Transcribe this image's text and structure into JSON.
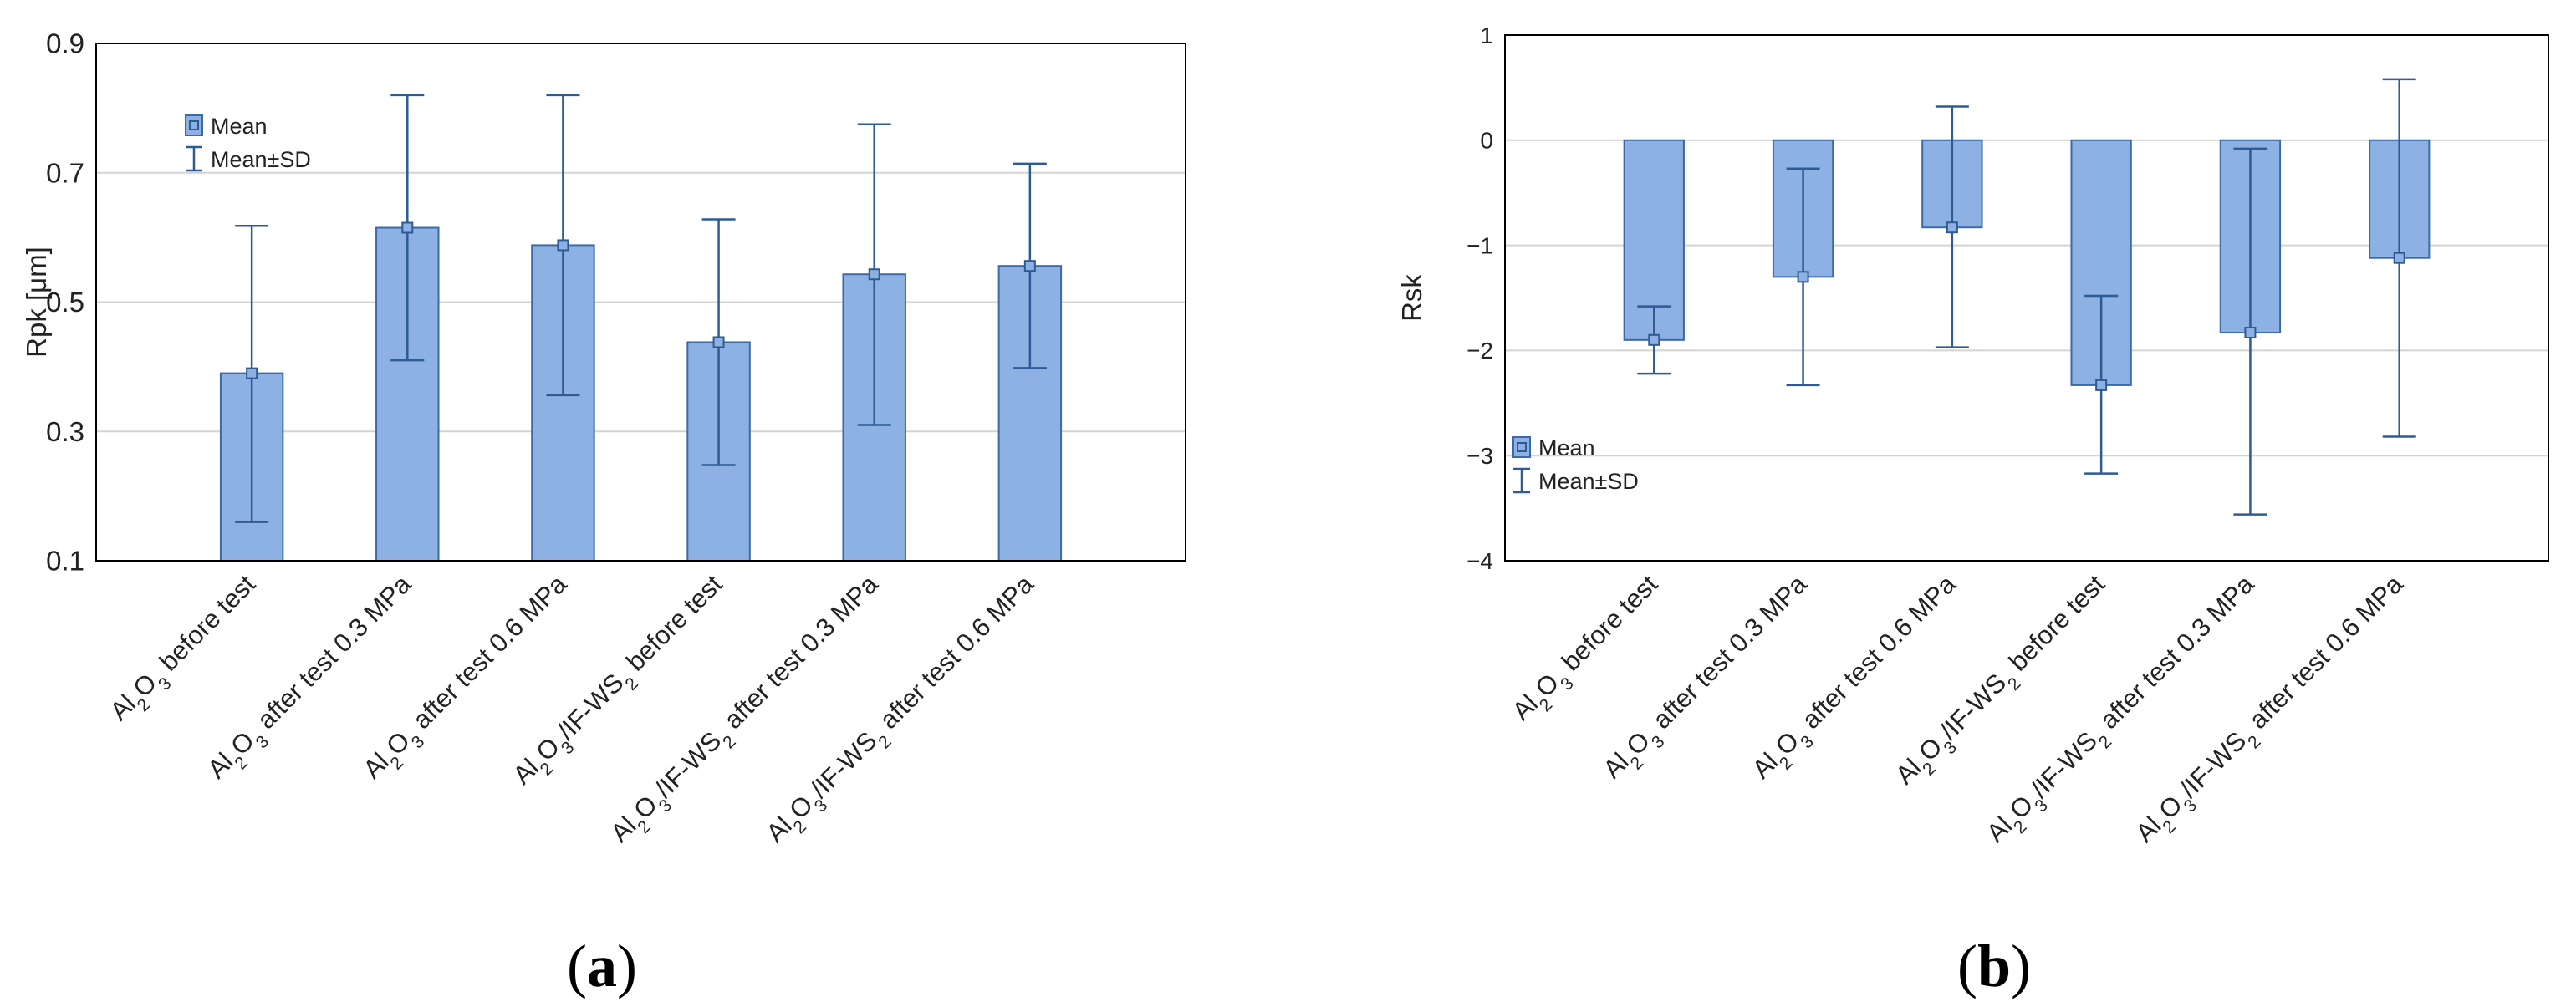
{
  "chart_data": [
    {
      "panel": "(a)",
      "type": "bar",
      "ylabel": "Rpk [μm]",
      "xlabel": "",
      "ylim": [
        0.1,
        0.9
      ],
      "yticks": [
        0.1,
        0.3,
        0.5,
        0.7,
        0.9
      ],
      "ytick_labels": [
        "0.1",
        "0.3",
        "0.5",
        "0.7",
        "0.9"
      ],
      "grid": true,
      "legend_position": "top-left",
      "legend": [
        "Mean",
        "Mean±SD"
      ],
      "categories": [
        [
          {
            "t": "Al"
          },
          {
            "t": "2",
            "sub": true
          },
          {
            "t": "O"
          },
          {
            "t": "3",
            "sub": true
          },
          {
            "t": " before test"
          }
        ],
        [
          {
            "t": "Al"
          },
          {
            "t": "2",
            "sub": true
          },
          {
            "t": "O"
          },
          {
            "t": "3",
            "sub": true
          },
          {
            "t": " after test 0.3 MPa"
          }
        ],
        [
          {
            "t": "Al"
          },
          {
            "t": "2",
            "sub": true
          },
          {
            "t": "O"
          },
          {
            "t": "3",
            "sub": true
          },
          {
            "t": " after test 0.6 MPa"
          }
        ],
        [
          {
            "t": "Al"
          },
          {
            "t": "2",
            "sub": true
          },
          {
            "t": "O"
          },
          {
            "t": "3",
            "sub": true
          },
          {
            "t": "/IF-WS"
          },
          {
            "t": "2",
            "sub": true
          },
          {
            "t": " before test"
          }
        ],
        [
          {
            "t": "Al"
          },
          {
            "t": "2",
            "sub": true
          },
          {
            "t": "O"
          },
          {
            "t": "3",
            "sub": true
          },
          {
            "t": "/IF-WS"
          },
          {
            "t": "2",
            "sub": true
          },
          {
            "t": " after test 0.3 MPa"
          }
        ],
        [
          {
            "t": "Al"
          },
          {
            "t": "2",
            "sub": true
          },
          {
            "t": "O"
          },
          {
            "t": "3",
            "sub": true
          },
          {
            "t": "/IF-WS"
          },
          {
            "t": "2",
            "sub": true
          },
          {
            "t": " after test 0.6 MPa"
          }
        ]
      ],
      "series": [
        {
          "name": "Mean",
          "values": [
            0.39,
            0.615,
            0.588,
            0.438,
            0.543,
            0.556
          ]
        },
        {
          "name": "Mean±SD",
          "lower": [
            0.16,
            0.41,
            0.356,
            0.248,
            0.31,
            0.398
          ],
          "upper": [
            0.618,
            0.82,
            0.82,
            0.628,
            0.775,
            0.714
          ]
        }
      ]
    },
    {
      "panel": "(b)",
      "type": "bar",
      "ylabel": "Rsk",
      "xlabel": "",
      "ylim": [
        -4,
        1
      ],
      "yticks": [
        -4,
        -3,
        -2,
        -1,
        0,
        1
      ],
      "ytick_labels": [
        "−4",
        "−3",
        "−2",
        "−1",
        "0",
        "1"
      ],
      "grid": true,
      "legend_position": "bottom-left",
      "legend": [
        "Mean",
        "Mean±SD"
      ],
      "categories": [
        [
          {
            "t": "Al"
          },
          {
            "t": "2",
            "sub": true
          },
          {
            "t": "O"
          },
          {
            "t": "3",
            "sub": true
          },
          {
            "t": " before test"
          }
        ],
        [
          {
            "t": "Al"
          },
          {
            "t": "2",
            "sub": true
          },
          {
            "t": "O"
          },
          {
            "t": "3",
            "sub": true
          },
          {
            "t": " after test 0.3 MPa"
          }
        ],
        [
          {
            "t": "Al"
          },
          {
            "t": "2",
            "sub": true
          },
          {
            "t": "O"
          },
          {
            "t": "3",
            "sub": true
          },
          {
            "t": " after test 0.6 MPa"
          }
        ],
        [
          {
            "t": "Al"
          },
          {
            "t": "2",
            "sub": true
          },
          {
            "t": "O"
          },
          {
            "t": "3",
            "sub": true
          },
          {
            "t": "/IF-WS"
          },
          {
            "t": "2",
            "sub": true
          },
          {
            "t": " before test"
          }
        ],
        [
          {
            "t": "Al"
          },
          {
            "t": "2",
            "sub": true
          },
          {
            "t": "O"
          },
          {
            "t": "3",
            "sub": true
          },
          {
            "t": "/IF-WS"
          },
          {
            "t": "2",
            "sub": true
          },
          {
            "t": " after test 0.3 MPa"
          }
        ],
        [
          {
            "t": "Al"
          },
          {
            "t": "2",
            "sub": true
          },
          {
            "t": "O"
          },
          {
            "t": "3",
            "sub": true
          },
          {
            "t": "/IF-WS"
          },
          {
            "t": "2",
            "sub": true
          },
          {
            "t": " after test 0.6 MPa"
          }
        ]
      ],
      "series": [
        {
          "name": "Mean",
          "values": [
            -1.9,
            -1.3,
            -0.83,
            -2.33,
            -1.83,
            -1.12
          ]
        },
        {
          "name": "Mean±SD",
          "lower": [
            -2.22,
            -2.33,
            -1.97,
            -3.17,
            -3.56,
            -2.82
          ],
          "upper": [
            -1.58,
            -0.27,
            0.32,
            -1.48,
            -0.08,
            0.58
          ]
        }
      ]
    }
  ],
  "colors": {
    "bar_fill": "#8db1e2",
    "bar_stroke": "#3c6aa8",
    "error_bar": "#2e5b94",
    "grid": "#d4d4d4",
    "axis": "#000000",
    "text": "#222222"
  }
}
